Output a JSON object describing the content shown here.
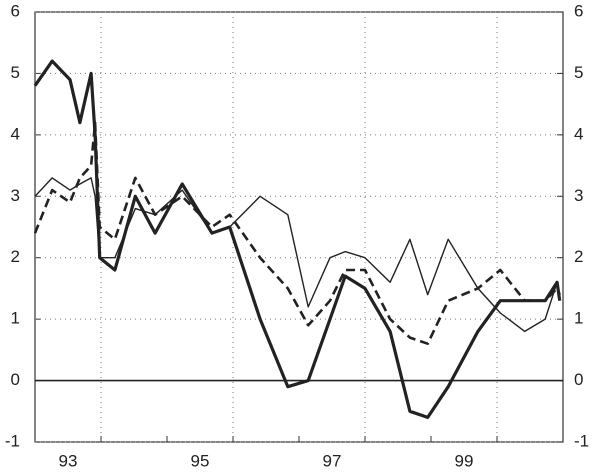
{
  "chart_data": {
    "type": "line",
    "x": [
      1993.0,
      1993.26,
      1993.53,
      1993.68,
      1993.85,
      1993.91,
      1993.98,
      1994.21,
      1994.52,
      1994.82,
      1995.23,
      1995.68,
      1995.95,
      1996.41,
      1996.83,
      1997.14,
      1997.47,
      1997.7,
      1998.0,
      1998.38,
      1998.68,
      1998.95,
      1999.26,
      1999.71,
      2000.05,
      2000.42,
      2000.73,
      2000.91,
      2000.95
    ],
    "series": [
      {
        "color": "#222222",
        "width": 3.2,
        "dash": "none",
        "values": [
          4.8,
          5.2,
          4.9,
          4.2,
          5.0,
          4.0,
          2.0,
          1.8,
          3.0,
          2.4,
          3.2,
          2.4,
          2.5,
          1.0,
          -0.1,
          0.0,
          1.0,
          1.7,
          1.5,
          0.8,
          -0.5,
          -0.6,
          -0.1,
          0.8,
          1.3,
          1.3,
          1.3,
          1.6,
          1.3
        ]
      },
      {
        "color": "#222222",
        "width": 2.6,
        "dash": "9 5",
        "values": [
          2.4,
          3.1,
          2.9,
          3.3,
          3.5,
          4.2,
          2.5,
          2.3,
          3.3,
          2.7,
          3.0,
          2.5,
          2.7,
          2.0,
          1.5,
          0.9,
          1.3,
          1.8,
          1.8,
          1.0,
          0.7,
          0.6,
          1.3,
          1.5,
          1.8,
          1.3,
          1.3,
          1.5,
          1.4
        ]
      },
      {
        "color": "#222222",
        "width": 1.4,
        "dash": "none",
        "values": [
          3.0,
          3.3,
          3.1,
          3.2,
          3.3,
          3.0,
          2.0,
          2.0,
          2.8,
          2.7,
          3.1,
          2.4,
          2.5,
          3.0,
          2.7,
          1.2,
          2.0,
          2.1,
          2.0,
          1.6,
          2.3,
          1.4,
          2.3,
          1.5,
          1.1,
          0.8,
          1.0,
          1.6,
          1.4
        ]
      }
    ],
    "xlim": [
      1993,
      2001
    ],
    "xticks": [
      {
        "value": 1993.5,
        "label": "93"
      },
      {
        "value": 1995.5,
        "label": "95"
      },
      {
        "value": 1997.5,
        "label": "97"
      },
      {
        "value": 1999.5,
        "label": "99"
      }
    ],
    "xminorticks": [
      1994,
      1995,
      1996,
      1997,
      1998,
      1999,
      2000
    ],
    "xgrid": [
      1994,
      1996,
      1998,
      2000
    ],
    "ylim": [
      -1,
      6
    ],
    "yticks": [
      -1,
      0,
      1,
      2,
      3,
      4,
      5,
      6
    ],
    "y2lim": [
      -1,
      6
    ],
    "y2ticks": [
      -1,
      0,
      1,
      2,
      3,
      4,
      5,
      6
    ],
    "grid": true,
    "zero_line": true
  }
}
